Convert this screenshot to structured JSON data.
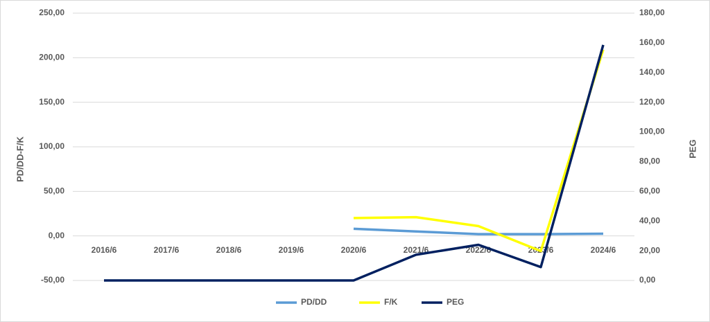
{
  "chart_data": {
    "type": "line",
    "categories": [
      "2016/6",
      "2017/6",
      "2018/6",
      "2019/6",
      "2020/6",
      "2021/6",
      "2022/6",
      "2023/6",
      "2024/6"
    ],
    "ylabel": "PD/DD-F/K",
    "y2label": "PEG",
    "ylim": [
      -50,
      250
    ],
    "yticks": [
      {
        "value": -50,
        "label": "-50,00"
      },
      {
        "value": 0,
        "label": "0,00"
      },
      {
        "value": 50,
        "label": "50,00"
      },
      {
        "value": 100,
        "label": "100,00"
      },
      {
        "value": 150,
        "label": "150,00"
      },
      {
        "value": 200,
        "label": "200,00"
      },
      {
        "value": 250,
        "label": "250,00"
      }
    ],
    "y2lim": [
      0,
      180
    ],
    "y2ticks": [
      {
        "value": 0,
        "label": "0,00"
      },
      {
        "value": 20,
        "label": "20,00"
      },
      {
        "value": 40,
        "label": "40,00"
      },
      {
        "value": 60,
        "label": "60,00"
      },
      {
        "value": 80,
        "label": "80,00"
      },
      {
        "value": 100,
        "label": "100,00"
      },
      {
        "value": 120,
        "label": "120,00"
      },
      {
        "value": 140,
        "label": "140,00"
      },
      {
        "value": 160,
        "label": "160,00"
      },
      {
        "value": 180,
        "label": "180,00"
      }
    ],
    "grid": true,
    "legend": "bottom",
    "series": [
      {
        "name": "PD/DD",
        "color": "#5b9bd5",
        "values": [
          null,
          null,
          null,
          null,
          8,
          5,
          2,
          2,
          2.5
        ]
      },
      {
        "name": "F/K",
        "color": "#ffff00",
        "values": [
          null,
          null,
          null,
          null,
          20,
          21,
          11,
          -17,
          209
        ]
      },
      {
        "name": "PEG",
        "color": "#002060",
        "axis": "y2",
        "values": [
          0,
          0,
          0,
          0,
          0,
          17.3,
          24,
          9,
          158.6
        ]
      }
    ]
  }
}
